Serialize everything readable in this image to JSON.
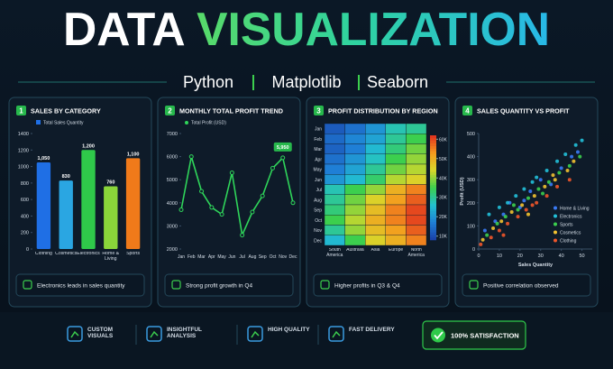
{
  "header": {
    "title": [
      "DATA",
      "VISUALIZATION"
    ],
    "tools": [
      "Python",
      "Matplotlib",
      "Seaborn"
    ]
  },
  "chart_data": [
    {
      "type": "bar",
      "number": "1",
      "title": "SALES BY CATEGORY",
      "categories": [
        "Clothing",
        "Cosmetics",
        "Electronics",
        "Home & Living",
        "Sports"
      ],
      "series": [
        {
          "name": "Total Sales Quantity",
          "values": [
            1050,
            830,
            1200,
            760,
            1100
          ],
          "value_labels": [
            "1,050",
            "830",
            "1,200",
            "760",
            "1,100"
          ],
          "colors": [
            "#1f6fe5",
            "#2aa6e2",
            "#2fc94a",
            "#8ad63a",
            "#f07a1a"
          ]
        }
      ],
      "ylim": [
        0,
        1400
      ],
      "yticks": [
        0,
        200,
        400,
        600,
        800,
        1000,
        1200,
        1400
      ],
      "note": "Electronics leads in sales quantity"
    },
    {
      "type": "line",
      "number": "2",
      "title": "MONTHLY TOTAL PROFIT TREND",
      "categories": [
        "Jan",
        "Feb",
        "Mar",
        "Apr",
        "May",
        "Jun",
        "Jul",
        "Aug",
        "Sep",
        "Oct",
        "Nov",
        "Dec"
      ],
      "series": [
        {
          "name": "Total Profit (USD)",
          "color": "#2fd55a",
          "values": [
            3700,
            6000,
            4500,
            3800,
            3500,
            5300,
            2600,
            3600,
            4300,
            5500,
            5950,
            4000
          ],
          "value_labels": [
            null,
            null,
            null,
            null,
            null,
            null,
            null,
            null,
            null,
            null,
            "5,950",
            null
          ]
        }
      ],
      "ylim": [
        2000,
        7000
      ],
      "yticks": [
        2000,
        3000,
        4000,
        5000,
        6000,
        7000
      ],
      "note": "Strong profit growth in Q4"
    },
    {
      "type": "heatmap",
      "number": "3",
      "title": "PROFIT DISTRIBUTION BY REGION",
      "rows": [
        "Jan",
        "Feb",
        "Mar",
        "Apr",
        "May",
        "Jun",
        "Jul",
        "Aug",
        "Sep",
        "Oct",
        "Nov",
        "Dec"
      ],
      "columns": [
        "South America",
        "Australia",
        "Asia",
        "Europe",
        "North America"
      ],
      "values": [
        [
          12000,
          15000,
          20000,
          28000,
          30000
        ],
        [
          14000,
          18000,
          22000,
          30000,
          35000
        ],
        [
          13000,
          17000,
          25000,
          32000,
          38000
        ],
        [
          15000,
          20000,
          27000,
          35000,
          40000
        ],
        [
          17000,
          22000,
          30000,
          38000,
          42000
        ],
        [
          20000,
          25000,
          33000,
          42000,
          45000
        ],
        [
          28000,
          35000,
          40000,
          50000,
          55000
        ],
        [
          30000,
          38000,
          45000,
          52000,
          58000
        ],
        [
          32000,
          40000,
          48000,
          55000,
          60000
        ],
        [
          35000,
          42000,
          50000,
          55000,
          60000
        ],
        [
          30000,
          40000,
          48000,
          52000,
          58000
        ],
        [
          25000,
          35000,
          45000,
          50000,
          55000
        ]
      ],
      "colormap": [
        "#1a3fa8",
        "#1f7fd6",
        "#22c0d0",
        "#3ccf4e",
        "#d8d82a",
        "#f59a1e",
        "#e0301e"
      ],
      "clim": [
        8000,
        62000
      ],
      "cticks": [
        {
          "value": 10000,
          "label": "10K"
        },
        {
          "value": 20000,
          "label": "20K"
        },
        {
          "value": 30000,
          "label": "30K"
        },
        {
          "value": 40000,
          "label": "40K"
        },
        {
          "value": 50000,
          "label": "50K"
        },
        {
          "value": 60000,
          "label": "60K"
        }
      ],
      "note": "Higher profits in Q3 & Q4"
    },
    {
      "type": "scatter",
      "number": "4",
      "title": "SALES QUANTITY VS PROFIT",
      "xlabel": "Sales Quantity",
      "ylabel": "Profit (USD)",
      "legend": "lower right",
      "series": [
        {
          "name": "Home & Living",
          "color": "#3a7bf5",
          "x": [
            3,
            8,
            12,
            15,
            20,
            25,
            30,
            35,
            40,
            45,
            48,
            22
          ],
          "values": [
            80,
            120,
            150,
            200,
            180,
            250,
            300,
            280,
            350,
            400,
            420,
            210
          ]
        },
        {
          "name": "Electronics",
          "color": "#22c0d8",
          "x": [
            5,
            10,
            18,
            22,
            28,
            33,
            38,
            42,
            47,
            50,
            14,
            26
          ],
          "values": [
            150,
            180,
            230,
            260,
            310,
            340,
            380,
            410,
            450,
            470,
            200,
            290
          ]
        },
        {
          "name": "Sports",
          "color": "#3ccf4e",
          "x": [
            4,
            9,
            13,
            19,
            24,
            29,
            34,
            39,
            44,
            49,
            17,
            31
          ],
          "values": [
            60,
            110,
            140,
            170,
            220,
            260,
            290,
            330,
            360,
            400,
            190,
            240
          ]
        },
        {
          "name": "Cosmetics",
          "color": "#f2c230",
          "x": [
            2,
            7,
            11,
            16,
            21,
            27,
            32,
            37,
            43,
            46,
            24,
            36
          ],
          "values": [
            40,
            90,
            120,
            160,
            190,
            230,
            270,
            300,
            340,
            380,
            150,
            320
          ]
        },
        {
          "name": "Clothing",
          "color": "#f0562a",
          "x": [
            1,
            6,
            10,
            14,
            19,
            23,
            28,
            33,
            38,
            44,
            12,
            26
          ],
          "values": [
            20,
            50,
            80,
            110,
            140,
            170,
            200,
            230,
            270,
            300,
            60,
            190
          ]
        }
      ],
      "xlim": [
        0,
        55
      ],
      "xticks": [
        0,
        10,
        20,
        30,
        40,
        50
      ],
      "ylim": [
        0,
        500
      ],
      "yticks": [
        0,
        100,
        200,
        300,
        400,
        500
      ],
      "note": "Positive correlation observed"
    }
  ],
  "features": [
    "CUSTOM VISUALS",
    "INSIGHTFUL ANALYSIS",
    "HIGH QUALITY",
    "FAST DELIVERY"
  ],
  "badge": "100% SATISFACTION"
}
